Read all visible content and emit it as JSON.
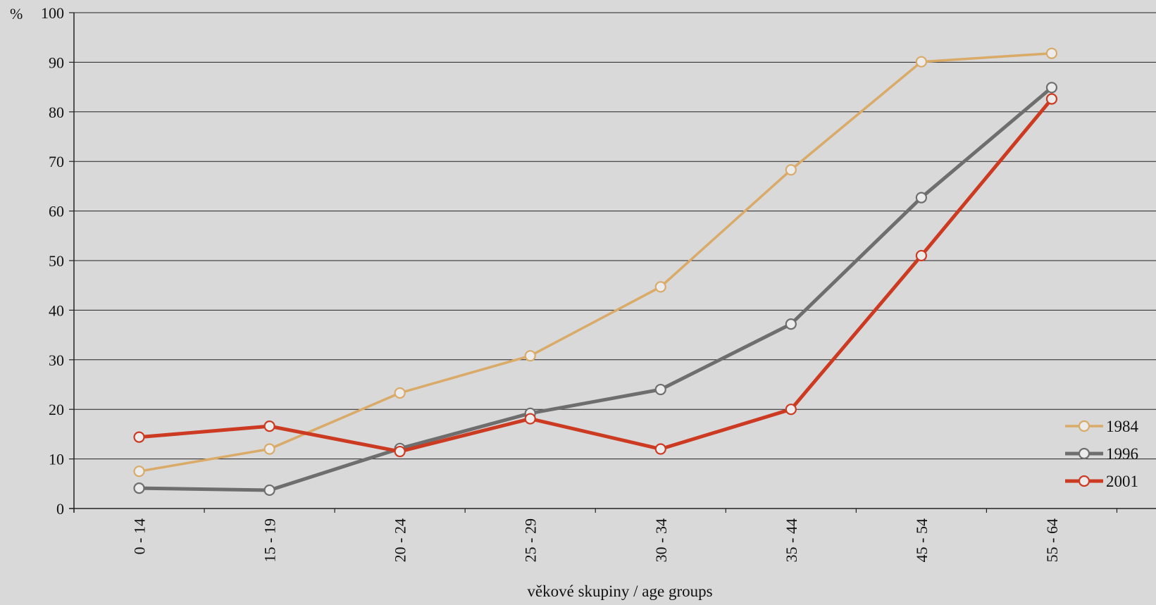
{
  "chart_data": {
    "type": "line",
    "y_unit_label": "%",
    "xlabel": "věkové skupiny / age groups",
    "ylabel": "",
    "ylim": [
      0,
      100
    ],
    "yticks": [
      0,
      10,
      20,
      30,
      40,
      50,
      60,
      70,
      80,
      90,
      100
    ],
    "grid": true,
    "legend_position": "bottom-right",
    "categories": [
      "0 - 14",
      "15 - 19",
      "20 - 24",
      "25 - 29",
      "30 - 34",
      "35 - 44",
      "45 - 54",
      "55 - 64"
    ],
    "series": [
      {
        "name": "1984",
        "color": "#d9aa68",
        "values": [
          7.5,
          12,
          23.3,
          30.8,
          44.7,
          68.3,
          90.1,
          91.8
        ]
      },
      {
        "name": "1996",
        "color": "#6e6e6e",
        "values": [
          4.1,
          3.7,
          12.1,
          19.2,
          24.0,
          37.2,
          62.7,
          84.9
        ]
      },
      {
        "name": "2001",
        "color": "#cc3a22",
        "values": [
          14.4,
          16.6,
          11.5,
          18.1,
          12.0,
          20.0,
          51.0,
          82.6
        ]
      }
    ]
  }
}
